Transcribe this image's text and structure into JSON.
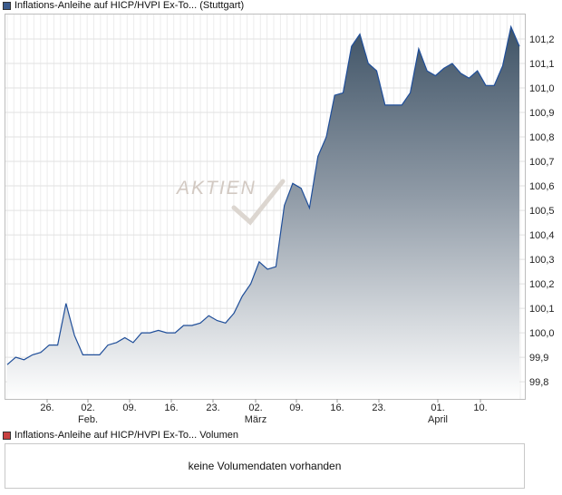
{
  "price_legend": {
    "label": "Inflations-Anleihe auf HICP/HVPI Ex-To... (Stuttgart)",
    "color": "#3a5a8c"
  },
  "volume_legend": {
    "label": "Inflations-Anleihe auf HICP/HVPI Ex-To... Volumen",
    "color": "#c84040"
  },
  "volume_panel": {
    "empty_text": "keine Volumendaten vorhanden"
  },
  "watermark": "AKTIEN",
  "chart_data": {
    "type": "area",
    "series": [
      {
        "name": "Inflations-Anleihe auf HICP/HVPI Ex-To... (Stuttgart)",
        "values": [
          99.87,
          99.9,
          99.89,
          99.91,
          99.92,
          99.95,
          99.95,
          100.12,
          99.99,
          99.91,
          99.91,
          99.91,
          99.95,
          99.96,
          99.98,
          99.96,
          100.0,
          100.0,
          100.01,
          100.0,
          100.0,
          100.03,
          100.03,
          100.04,
          100.07,
          100.05,
          100.04,
          100.08,
          100.15,
          100.2,
          100.29,
          100.26,
          100.27,
          100.52,
          100.61,
          100.59,
          100.51,
          100.72,
          100.8,
          100.97,
          100.98,
          101.17,
          101.22,
          101.1,
          101.07,
          100.93,
          100.93,
          100.93,
          100.98,
          101.16,
          101.07,
          101.05,
          101.08,
          101.1,
          101.06,
          101.04,
          101.07,
          101.01,
          101.01,
          101.09,
          101.25,
          101.17
        ]
      }
    ],
    "x_tick_labels": [
      "26.",
      "02.",
      "09.",
      "16.",
      "23.",
      "02.",
      "09.",
      "16.",
      "23.",
      "01.",
      "10."
    ],
    "x_month_labels": [
      "Feb.",
      "März",
      "April"
    ],
    "y_tick_labels": [
      "99,8",
      "99,9",
      "100,0",
      "100,1",
      "100,2",
      "100,3",
      "100,4",
      "100,5",
      "100,6",
      "100,7",
      "100,8",
      "100,9",
      "101,0",
      "101,1",
      "101,2"
    ],
    "ylim": [
      99.73,
      101.3
    ],
    "grid": true,
    "line_color": "#1f4e99",
    "fill_top_color": "#3f5366",
    "fill_bottom_color": "#ffffff"
  }
}
